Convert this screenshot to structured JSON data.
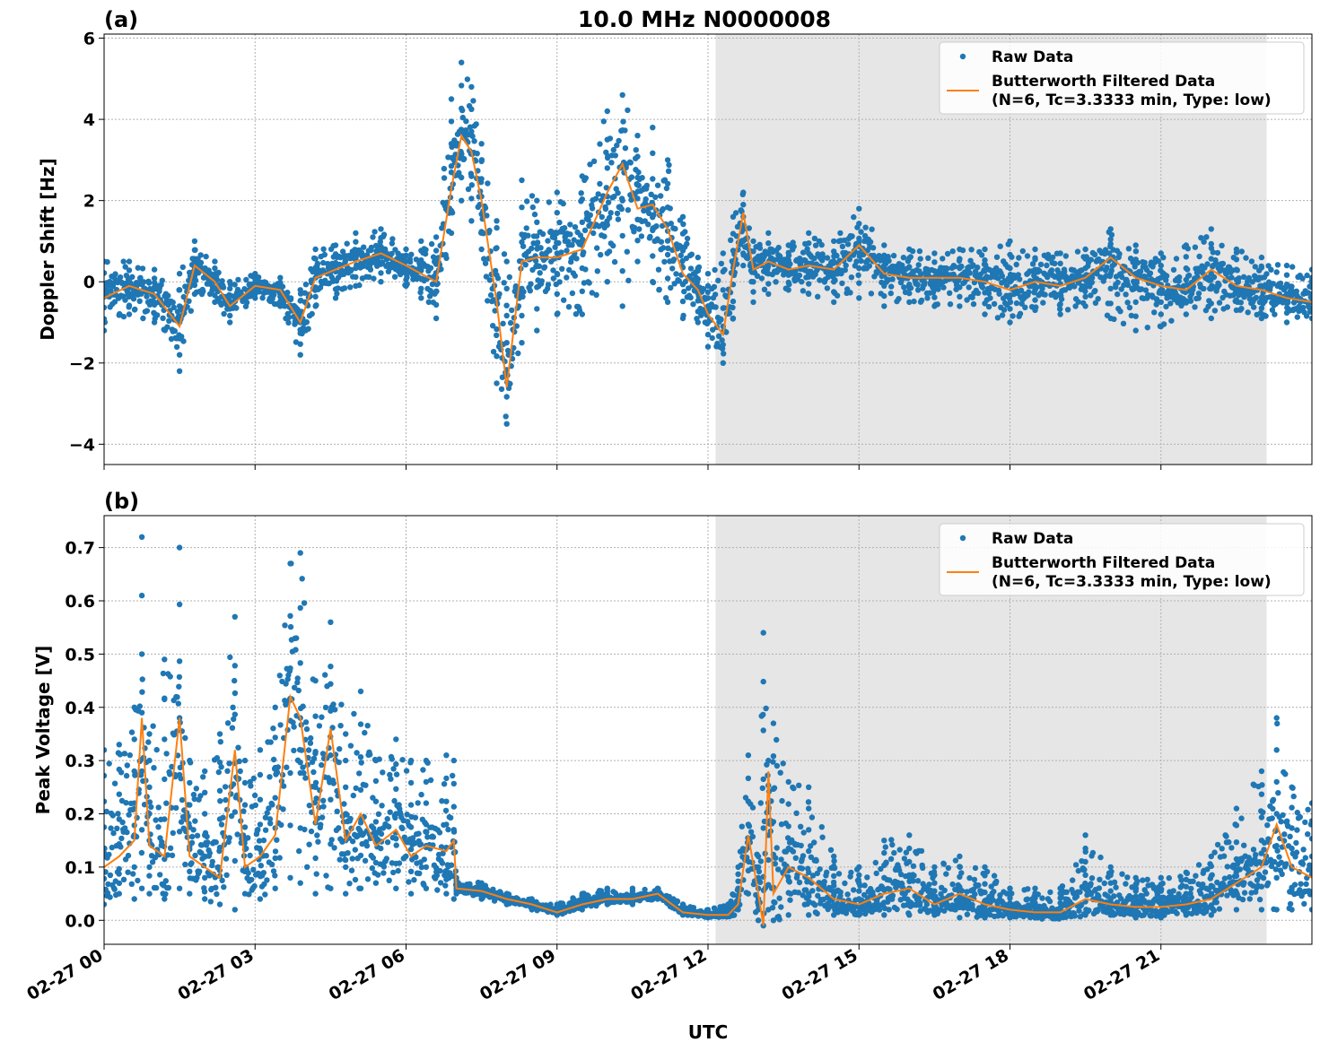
{
  "figure": {
    "title": "10.0 MHz N0000008",
    "xlabel": "UTC"
  },
  "colors": {
    "raw": "#1f77b4",
    "filtered": "#ff7f0e",
    "shade": "#e6e6e6",
    "grid": "#b0b0b0"
  },
  "chart_data": [
    {
      "type": "scatter",
      "panel_label": "(a)",
      "title": "10.0 MHz N0000008",
      "xlabel": "",
      "ylabel": "Doppler Shift [Hz]",
      "xlim": [
        0,
        24
      ],
      "ylim": [
        -4.5,
        6.1
      ],
      "yticks": [
        -4,
        -2,
        0,
        2,
        4,
        6
      ],
      "yticklabels": [
        "−4",
        "−2",
        "0",
        "2",
        "4",
        "6"
      ],
      "xticks": [
        0,
        3,
        6,
        9,
        12,
        15,
        18,
        21
      ],
      "xticklabels": [
        "02-27 00",
        "02-27 03",
        "02-27 06",
        "02-27 09",
        "02-27 12",
        "02-27 15",
        "02-27 18",
        "02-27 21"
      ],
      "grid": true,
      "legend_position": "top-right",
      "shaded_x_range": [
        12.15,
        23.1
      ],
      "legend": [
        "Raw Data",
        "Butterworth Filtered Data",
        "(N=6, Tc=3.3333 min, Type: low)"
      ],
      "series": [
        {
          "name": "Raw Data",
          "kind": "scatter-band",
          "x": [
            0,
            0.5,
            1,
            1.5,
            1.8,
            2.2,
            2.5,
            3,
            3.5,
            3.9,
            4.2,
            4.6,
            5,
            5.5,
            6,
            6.3,
            6.6,
            6.9,
            7.1,
            7.3,
            7.5,
            7.8,
            8.0,
            8.3,
            8.6,
            9.0,
            9.5,
            10,
            10.3,
            10.6,
            10.9,
            11.2,
            11.5,
            11.8,
            12.0,
            12.3,
            12.5,
            12.7,
            12.9,
            13.2,
            13.6,
            14,
            14.5,
            15,
            15.5,
            16,
            16.5,
            17,
            17.5,
            18,
            18.5,
            19,
            19.5,
            20,
            20.5,
            21,
            21.5,
            22,
            22.5,
            23,
            23.5,
            24
          ],
          "low": [
            -1.2,
            -0.8,
            -1.0,
            -2.2,
            -0.3,
            -0.5,
            -1.0,
            -0.4,
            -0.6,
            -1.8,
            -0.6,
            -0.4,
            -0.1,
            0.0,
            -0.1,
            -0.4,
            -0.9,
            1.2,
            2.0,
            1.5,
            0.8,
            -2.5,
            -3.5,
            -1.5,
            -1.2,
            -0.8,
            -0.8,
            0.0,
            -0.6,
            0.5,
            0.0,
            -0.5,
            -0.9,
            -1.0,
            -1.6,
            -2.0,
            -0.9,
            0.4,
            -0.5,
            -0.3,
            -0.2,
            -0.3,
            -0.5,
            -0.4,
            -0.6,
            -0.5,
            -0.6,
            -0.6,
            -0.8,
            -1.0,
            -0.7,
            -0.8,
            -0.6,
            -0.9,
            -1.2,
            -1.1,
            -0.8,
            -0.9,
            -0.7,
            -0.9,
            -1.0,
            -0.9
          ],
          "high": [
            0.5,
            0.5,
            0.3,
            0.2,
            1.0,
            0.5,
            0.0,
            0.2,
            0.1,
            -0.2,
            0.8,
            0.9,
            1.2,
            1.3,
            0.8,
            1.0,
            1.1,
            4.5,
            5.4,
            4.8,
            3.4,
            1.5,
            0.5,
            2.5,
            2.0,
            2.2,
            2.6,
            4.2,
            4.6,
            3.6,
            3.8,
            3.0,
            1.6,
            0.6,
            0.2,
            0.7,
            1.6,
            2.2,
            1.0,
            1.2,
            0.9,
            1.2,
            1.0,
            1.8,
            0.9,
            0.8,
            0.7,
            0.8,
            0.8,
            1.0,
            0.8,
            0.7,
            0.8,
            1.3,
            0.9,
            0.7,
            0.9,
            1.3,
            0.8,
            0.6,
            0.4,
            0.3
          ]
        },
        {
          "name": "Butterworth Filtered Data",
          "kind": "line",
          "x": [
            0,
            0.5,
            1,
            1.5,
            1.8,
            2.2,
            2.5,
            3,
            3.5,
            3.9,
            4.2,
            4.6,
            5,
            5.5,
            6,
            6.3,
            6.6,
            6.9,
            7.1,
            7.3,
            7.5,
            7.8,
            8.0,
            8.3,
            8.6,
            9.0,
            9.5,
            10,
            10.3,
            10.6,
            10.9,
            11.2,
            11.5,
            11.8,
            12.0,
            12.3,
            12.5,
            12.7,
            12.9,
            13.2,
            13.6,
            14,
            14.5,
            15,
            15.5,
            16,
            16.5,
            17,
            17.5,
            18,
            18.5,
            19,
            19.5,
            20,
            20.5,
            21,
            21.5,
            22,
            22.5,
            23,
            23.5,
            24
          ],
          "y": [
            -0.4,
            -0.1,
            -0.3,
            -1.1,
            0.4,
            0.0,
            -0.6,
            -0.1,
            -0.2,
            -1.0,
            0.1,
            0.3,
            0.5,
            0.7,
            0.4,
            0.2,
            0.0,
            2.3,
            3.6,
            3.2,
            2.0,
            -0.5,
            -2.6,
            0.5,
            0.6,
            0.6,
            0.8,
            2.2,
            2.9,
            1.8,
            1.9,
            1.3,
            0.2,
            -0.2,
            -0.8,
            -1.3,
            0.3,
            1.7,
            0.3,
            0.5,
            0.3,
            0.4,
            0.3,
            0.9,
            0.2,
            0.1,
            0.1,
            0.1,
            0.0,
            -0.2,
            0.0,
            -0.1,
            0.1,
            0.6,
            0.1,
            -0.1,
            -0.2,
            0.3,
            -0.1,
            -0.2,
            -0.4,
            -0.5
          ]
        }
      ]
    },
    {
      "type": "scatter",
      "panel_label": "(b)",
      "title": "",
      "xlabel": "UTC",
      "ylabel": "Peak Voltage [V]",
      "xlim": [
        0,
        24
      ],
      "ylim": [
        -0.045,
        0.76
      ],
      "yticks": [
        0.0,
        0.1,
        0.2,
        0.3,
        0.4,
        0.5,
        0.6,
        0.7
      ],
      "yticklabels": [
        "0.0",
        "0.1",
        "0.2",
        "0.3",
        "0.4",
        "0.5",
        "0.6",
        "0.7"
      ],
      "xticks": [
        0,
        3,
        6,
        9,
        12,
        15,
        18,
        21
      ],
      "xticklabels": [
        "02-27 00",
        "02-27 03",
        "02-27 06",
        "02-27 09",
        "02-27 12",
        "02-27 15",
        "02-27 18",
        "02-27 21"
      ],
      "grid": true,
      "legend_position": "top-right",
      "shaded_x_range": [
        12.15,
        23.1
      ],
      "legend": [
        "Raw Data",
        "Butterworth Filtered Data",
        "(N=6, Tc=3.3333 min, Type: low)"
      ],
      "series": [
        {
          "name": "Raw Data",
          "kind": "scatter-band",
          "x": [
            0,
            0.3,
            0.6,
            0.75,
            0.9,
            1.2,
            1.5,
            1.7,
            2.0,
            2.3,
            2.6,
            2.8,
            3.1,
            3.4,
            3.7,
            3.9,
            4.2,
            4.5,
            4.8,
            5.1,
            5.4,
            5.8,
            6.1,
            6.4,
            6.8,
            6.95,
            7.0,
            7.5,
            8.0,
            8.5,
            9.0,
            9.5,
            10.0,
            10.5,
            11.0,
            11.5,
            12.0,
            12.4,
            12.6,
            12.8,
            13.0,
            13.1,
            13.2,
            13.3,
            13.6,
            14.0,
            14.5,
            15.0,
            15.5,
            16.0,
            16.5,
            17.0,
            17.5,
            18.0,
            18.5,
            19.0,
            19.5,
            20.0,
            20.5,
            21.0,
            21.5,
            22.0,
            22.5,
            23.0,
            23.3,
            23.6,
            24.0
          ],
          "low": [
            0.03,
            0.05,
            0.04,
            0.06,
            0.05,
            0.04,
            0.06,
            0.05,
            0.04,
            0.03,
            0.02,
            0.05,
            0.04,
            0.06,
            0.08,
            0.07,
            0.05,
            0.06,
            0.05,
            0.06,
            0.07,
            0.06,
            0.05,
            0.06,
            0.05,
            0.04,
            0.05,
            0.04,
            0.03,
            0.02,
            0.01,
            0.02,
            0.03,
            0.03,
            0.04,
            0.01,
            0.005,
            0.01,
            0.02,
            0.05,
            0.0,
            -0.01,
            0.02,
            0.0,
            0.01,
            0.01,
            0.01,
            0.01,
            0.01,
            0.01,
            0.01,
            0.005,
            0.005,
            0.005,
            0.005,
            0.005,
            0.01,
            0.01,
            0.005,
            0.005,
            0.01,
            0.01,
            0.02,
            0.02,
            0.02,
            0.02,
            0.02
          ],
          "high": [
            0.32,
            0.33,
            0.4,
            0.72,
            0.35,
            0.49,
            0.7,
            0.3,
            0.28,
            0.35,
            0.57,
            0.3,
            0.32,
            0.4,
            0.67,
            0.69,
            0.45,
            0.56,
            0.35,
            0.43,
            0.3,
            0.34,
            0.3,
            0.3,
            0.31,
            0.3,
            0.08,
            0.07,
            0.05,
            0.04,
            0.03,
            0.05,
            0.06,
            0.06,
            0.06,
            0.03,
            0.02,
            0.03,
            0.1,
            0.31,
            0.12,
            0.54,
            0.3,
            0.37,
            0.26,
            0.25,
            0.12,
            0.1,
            0.15,
            0.16,
            0.1,
            0.12,
            0.1,
            0.06,
            0.06,
            0.06,
            0.16,
            0.1,
            0.08,
            0.08,
            0.09,
            0.12,
            0.21,
            0.28,
            0.38,
            0.25,
            0.22
          ]
        },
        {
          "name": "Butterworth Filtered Data",
          "kind": "line",
          "x": [
            0,
            0.3,
            0.6,
            0.75,
            0.9,
            1.2,
            1.5,
            1.7,
            2.0,
            2.3,
            2.6,
            2.8,
            3.1,
            3.4,
            3.7,
            3.9,
            4.2,
            4.5,
            4.8,
            5.1,
            5.4,
            5.8,
            6.1,
            6.4,
            6.8,
            6.95,
            7.0,
            7.5,
            8.0,
            8.5,
            9.0,
            9.5,
            10.0,
            10.5,
            11.0,
            11.5,
            12.0,
            12.4,
            12.6,
            12.8,
            13.0,
            13.1,
            13.2,
            13.3,
            13.6,
            14.0,
            14.5,
            15.0,
            15.5,
            16.0,
            16.5,
            17.0,
            17.5,
            18.0,
            18.5,
            19.0,
            19.5,
            20.0,
            20.5,
            21.0,
            21.5,
            22.0,
            22.5,
            23.0,
            23.3,
            23.6,
            24.0
          ],
          "y": [
            0.1,
            0.12,
            0.15,
            0.38,
            0.14,
            0.12,
            0.38,
            0.12,
            0.1,
            0.08,
            0.32,
            0.1,
            0.12,
            0.16,
            0.42,
            0.38,
            0.18,
            0.36,
            0.15,
            0.2,
            0.14,
            0.17,
            0.12,
            0.14,
            0.13,
            0.15,
            0.06,
            0.055,
            0.04,
            0.03,
            0.015,
            0.03,
            0.04,
            0.04,
            0.05,
            0.015,
            0.01,
            0.01,
            0.03,
            0.16,
            0.05,
            -0.01,
            0.28,
            0.05,
            0.1,
            0.08,
            0.04,
            0.03,
            0.05,
            0.06,
            0.03,
            0.05,
            0.03,
            0.02,
            0.015,
            0.015,
            0.04,
            0.03,
            0.025,
            0.025,
            0.03,
            0.04,
            0.07,
            0.1,
            0.18,
            0.1,
            0.08
          ]
        }
      ]
    }
  ]
}
